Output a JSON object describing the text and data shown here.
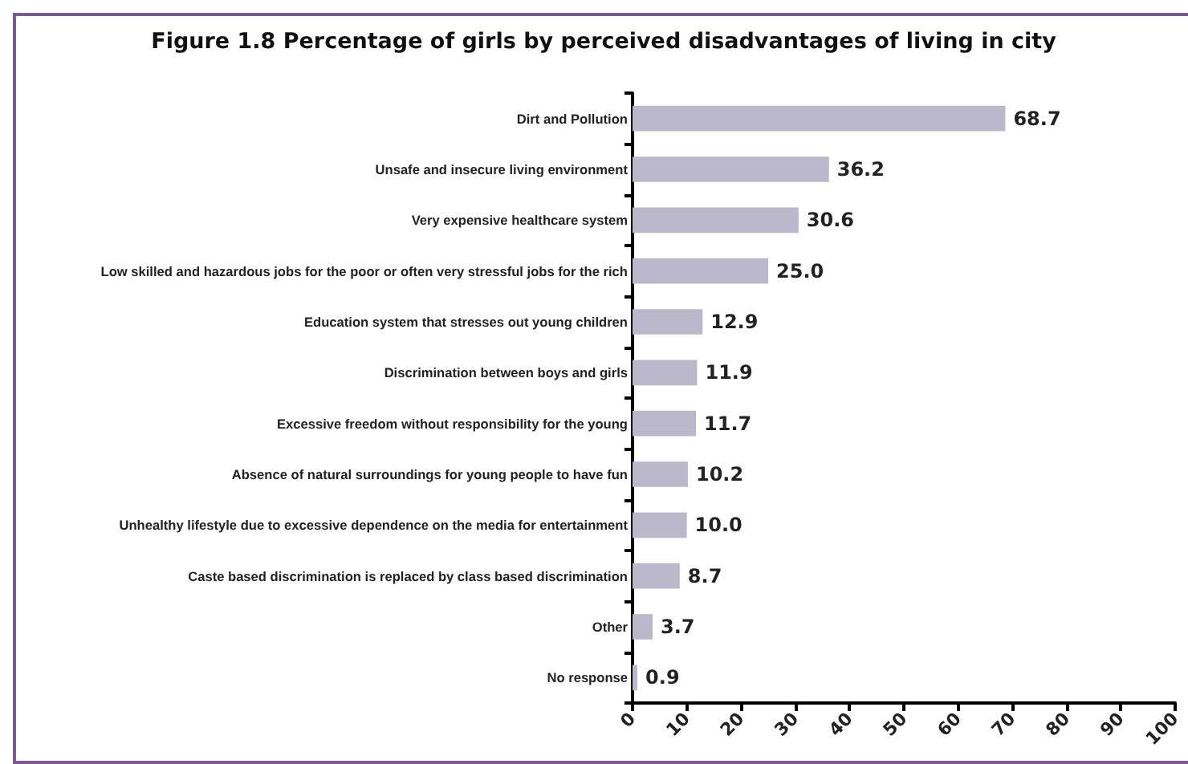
{
  "chart_data": {
    "type": "bar",
    "orientation": "horizontal",
    "title": "Figure 1.8 Percentage of girls by perceived disadvantages of living in city",
    "categories": [
      "Dirt and Pollution",
      "Unsafe and insecure living environment",
      "Very expensive healthcare system",
      "Low skilled and hazardous jobs for the poor or often very stressful jobs for the rich",
      "Education system that stresses out young children",
      "Discrimination between boys and girls",
      "Excessive freedom without responsibility for the young",
      "Absence of natural surroundings for young people to have fun",
      "Unhealthy lifestyle due to excessive dependence on the media for entertainment",
      "Caste based discrimination is replaced by class based discrimination",
      "Other",
      "No response"
    ],
    "values": [
      68.7,
      36.2,
      30.6,
      25.0,
      12.9,
      11.9,
      11.7,
      10.2,
      10.0,
      8.7,
      3.7,
      0.9
    ],
    "value_labels": [
      "68.7",
      "36.2",
      "30.6",
      "25.0",
      "12.9",
      "11.9",
      "11.7",
      "10.2",
      "10.0",
      "8.7",
      "3.7",
      "0.9"
    ],
    "color": "#bbb8cc",
    "xlim": [
      0,
      100
    ],
    "xticks": [
      0,
      10,
      20,
      30,
      40,
      50,
      60,
      70,
      80,
      90,
      100
    ],
    "grid": false
  }
}
